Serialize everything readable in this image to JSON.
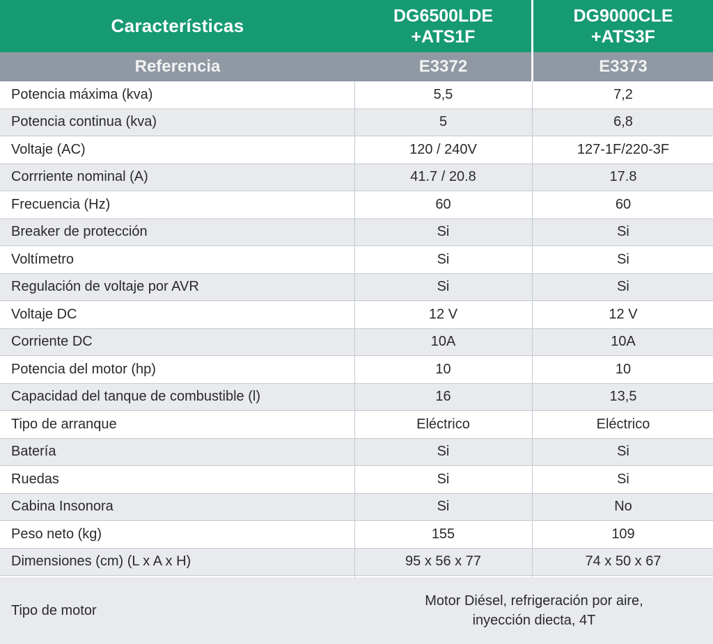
{
  "header": {
    "col1": "Características",
    "col2_line1": "DG6500LDE",
    "col2_line2": "+ATS1F",
    "col3_line1": "DG9000CLE",
    "col3_line2": "+ATS3F"
  },
  "reference": {
    "label": "Referencia",
    "v1": "E3372",
    "v2": "E3373"
  },
  "rows": [
    {
      "label": "Potencia máxima (kva)",
      "v1": "5,5",
      "v2": "7,2"
    },
    {
      "label": "Potencia continua (kva)",
      "v1": "5",
      "v2": "6,8"
    },
    {
      "label": "Voltaje (AC)",
      "v1": "120 / 240V",
      "v2": "127-1F/220-3F"
    },
    {
      "label": "Corrriente nominal (A)",
      "v1": "41.7 / 20.8",
      "v2": "17.8"
    },
    {
      "label": "Frecuencia (Hz)",
      "v1": "60",
      "v2": "60"
    },
    {
      "label": "Breaker de protección",
      "v1": "Si",
      "v2": "Si"
    },
    {
      "label": "Voltímetro",
      "v1": "Si",
      "v2": "Si"
    },
    {
      "label": "Regulación de voltaje por AVR",
      "v1": "Si",
      "v2": "Si"
    },
    {
      "label": "Voltaje DC",
      "v1": "12 V",
      "v2": "12 V"
    },
    {
      "label": "Corriente DC",
      "v1": "10A",
      "v2": "10A"
    },
    {
      "label": "Potencia del motor (hp)",
      "v1": "10",
      "v2": "10"
    },
    {
      "label": "Capacidad del tanque de combustible (l)",
      "v1": "16",
      "v2": "13,5"
    },
    {
      "label": "Tipo de arranque",
      "v1": "Eléctrico",
      "v2": "Eléctrico"
    },
    {
      "label": "Batería",
      "v1": "Si",
      "v2": "Si"
    },
    {
      "label": "Ruedas",
      "v1": "Si",
      "v2": "Si"
    },
    {
      "label": "Cabina Insonora",
      "v1": "Si",
      "v2": "No"
    },
    {
      "label": "Peso neto (kg)",
      "v1": "155",
      "v2": "109"
    },
    {
      "label": "Dimensiones (cm) (L x A x H)",
      "v1": "95 x 56 x 77",
      "v2": "74 x 50 x 67"
    }
  ],
  "motor": {
    "label": "Tipo de motor",
    "line1": "Motor Diésel, refrigeración por aire,",
    "line2": "inyección diecta, 4T"
  },
  "colors": {
    "header_bg": "#169a72",
    "reference_bg": "#8f98a3",
    "row_alt_bg": "#e8eaed"
  }
}
